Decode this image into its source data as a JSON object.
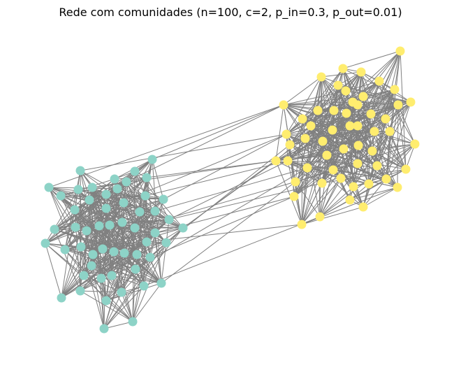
{
  "title": "Rede com comunidades (n=100, c=2, p_in=0.3, p_out=0.01)",
  "colors": {
    "community_0": "#8dd3c7",
    "community_1": "#ffed6f",
    "edge": "#808080"
  }
}
